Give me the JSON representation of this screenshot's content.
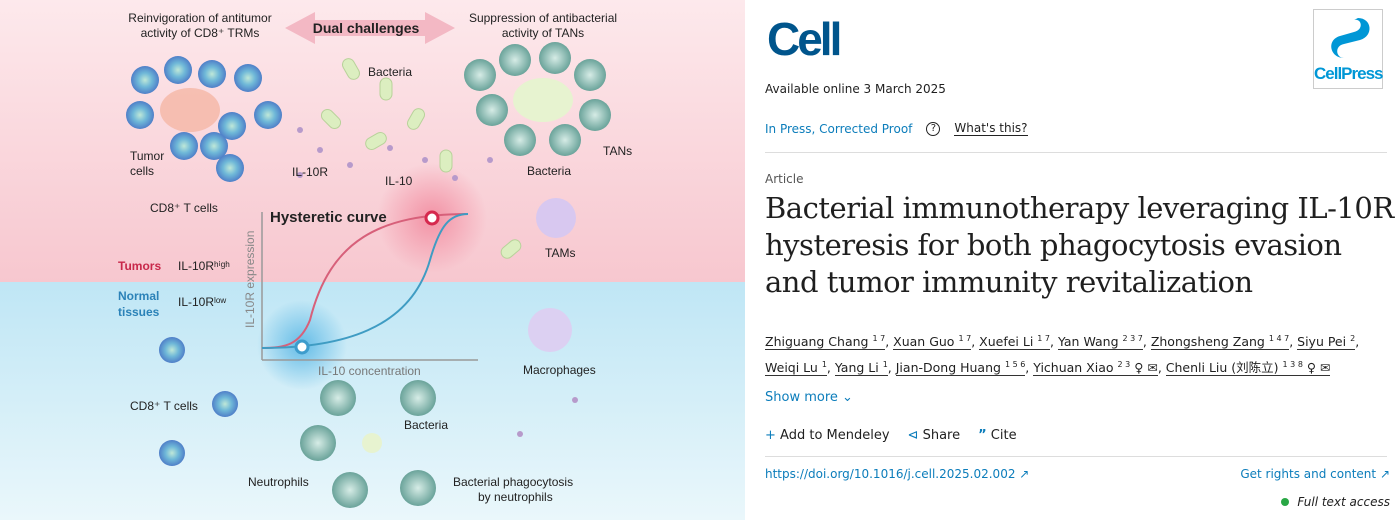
{
  "graphical_abstract": {
    "top_left": [
      "Reinvigoration of antitumor",
      "activity of CD8⁺ TRMs"
    ],
    "dual": "Dual challenges",
    "top_right": [
      "Suppression of antibacterial",
      "activity of TANs"
    ],
    "bacteria": "Bacteria",
    "tumor_cells": [
      "Tumor",
      "cells"
    ],
    "il10r": "IL-10R",
    "il10": "IL-10",
    "cd8_top": "CD8⁺ T cells",
    "bacteria2": "Bacteria",
    "tans": "TANs",
    "tams": "TAMs",
    "curve_title": "Hysteretic curve",
    "tumors": "Tumors",
    "il10r_high": "IL-10Rʰⁱᵍʰ",
    "normal": [
      "Normal",
      "tissues"
    ],
    "il10r_low": "IL-10Rˡᵒʷ",
    "yaxis": "IL-10R expression",
    "xaxis": "IL-10 concentration",
    "macrophages": "Macrophages",
    "cd8_bottom": "CD8⁺ T cells",
    "bacteria3": "Bacteria",
    "neutrophils": "Neutrophils",
    "phago": [
      "Bacterial phagocytosis",
      "by neutrophils"
    ],
    "colors": {
      "tumor_bg": "#fbdde2",
      "normal_bg": "#d6f0f8",
      "red": "#d6294e",
      "blue": "#3d9ccc"
    }
  },
  "article": {
    "journal": "Cell",
    "publisher": "CellPress",
    "available": "Available online 3 March 2025",
    "status": "In Press, Corrected Proof",
    "help_icon": "?",
    "whats_this": "What's this?",
    "type": "Article",
    "title": "Bacterial immunotherapy leveraging IL-10R hysteresis for both phagocytosis evasion and tumor immunity revitalization",
    "authors": [
      {
        "name": "Zhiguang Chang",
        "sup": "1 7"
      },
      {
        "name": "Xuan Guo",
        "sup": "1 7"
      },
      {
        "name": "Xuefei Li",
        "sup": "1 7"
      },
      {
        "name": "Yan Wang",
        "sup": "2 3 7"
      },
      {
        "name": "Zhongsheng Zang",
        "sup": "1 4 7"
      },
      {
        "name": "Siyu Pei",
        "sup": "2"
      },
      {
        "name": "Weiqi Lu",
        "sup": "1"
      },
      {
        "name": "Yang Li",
        "sup": "1"
      },
      {
        "name": "Jian-Dong Huang",
        "sup": "1 5 6"
      },
      {
        "name": "Yichuan Xiao",
        "sup": "2 3"
      },
      {
        "name": "Chenli Liu (刘陈立)",
        "sup": "1 3 8"
      }
    ],
    "show_more": "Show more",
    "add_mendeley": "Add to Mendeley",
    "share": "Share",
    "cite": "Cite",
    "doi": "https://doi.org/10.1016/j.cell.2025.02.002",
    "rights": "Get rights and content",
    "access": "Full text access",
    "colors": {
      "link": "#0c7dbb",
      "logo": "#00558c",
      "access": "#29a745"
    }
  }
}
